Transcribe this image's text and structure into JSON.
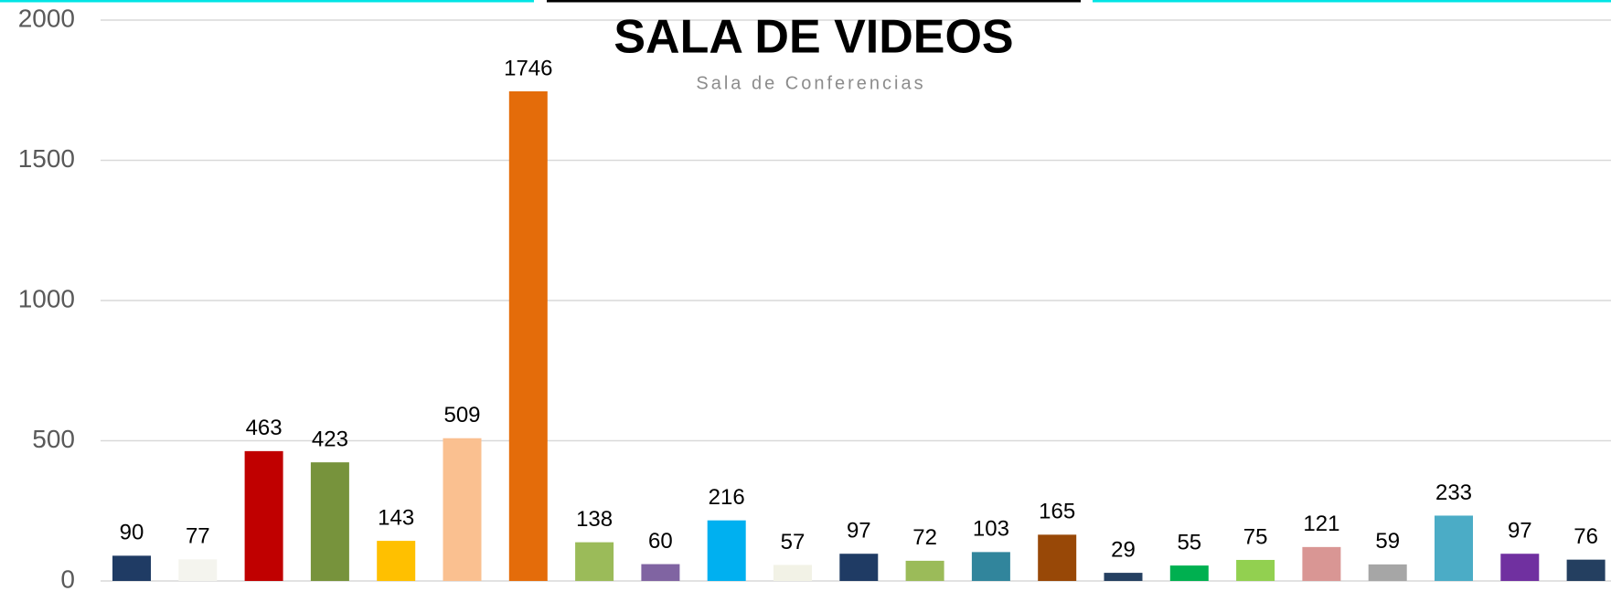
{
  "chart_data": {
    "type": "bar",
    "title": "SALA DE VIDEOS",
    "subtitle": "Sala de Conferencias",
    "values": [
      90,
      77,
      463,
      423,
      143,
      509,
      1746,
      138,
      60,
      216,
      57,
      97,
      72,
      103,
      165,
      29,
      55,
      75,
      121,
      59,
      233,
      97,
      76
    ],
    "colors": [
      "#1f3b64",
      "#f4f4ee",
      "#c00000",
      "#77933c",
      "#ffc000",
      "#fac090",
      "#e46c0a",
      "#9bbb59",
      "#8064a2",
      "#00b0f0",
      "#f2f2e6",
      "#1f3b64",
      "#9bbb59",
      "#31859c",
      "#984807",
      "#254061",
      "#00b050",
      "#92d050",
      "#d99694",
      "#a6a6a6",
      "#4bacc6",
      "#7030a0",
      "#243f60"
    ],
    "ylim": [
      0,
      2000
    ],
    "yticks": [
      0,
      500,
      1000,
      1500,
      2000
    ],
    "grid": true
  }
}
